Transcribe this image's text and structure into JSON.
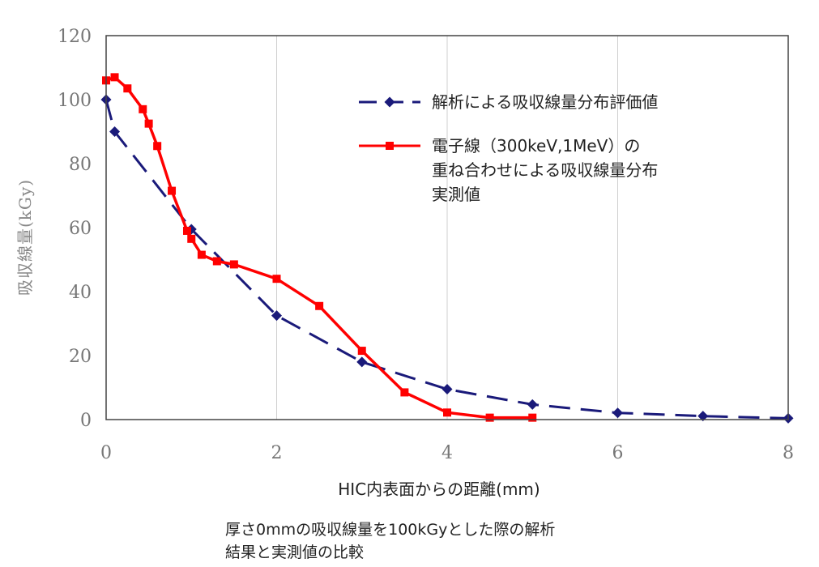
{
  "chart_data": {
    "type": "line",
    "title": "",
    "xlabel": "HIC内表面からの距離(mm)",
    "ylabel": "吸収線量(kGy)",
    "xlim": [
      0,
      8
    ],
    "ylim": [
      0,
      120
    ],
    "xticks": [
      0,
      2,
      4,
      6,
      8
    ],
    "yticks": [
      0,
      20,
      40,
      60,
      80,
      100,
      120
    ],
    "grid": "vertical",
    "legend_position": "top-right",
    "series": [
      {
        "name": "解析による吸収線量分布評価値",
        "legend_lines": [
          "解析による吸収線量分布評価値"
        ],
        "color": "#1a1a7a",
        "line_style": "dashed",
        "marker": "diamond",
        "x": [
          0,
          0.1,
          1.0,
          2.0,
          3.0,
          4.0,
          5.0,
          6.0,
          7.0,
          8.0
        ],
        "y": [
          100,
          90,
          59.5,
          32.5,
          18,
          9.5,
          4.7,
          2.1,
          1.1,
          0.4
        ]
      },
      {
        "name": "電子線（300keV,1MeV）の重ね合わせによる吸収線量分布実測値",
        "legend_lines": [
          "電子線（300keV,1MeV）の",
          "重ね合わせによる吸収線量分布",
          "実測値"
        ],
        "color": "#ff0000",
        "line_style": "solid",
        "marker": "square",
        "x": [
          0,
          0.1,
          0.25,
          0.43,
          0.5,
          0.6,
          0.77,
          0.95,
          1.0,
          1.12,
          1.3,
          1.5,
          2.0,
          2.5,
          3.0,
          3.5,
          4.0,
          4.5,
          5.0
        ],
        "y": [
          106,
          107,
          103.5,
          97,
          92.5,
          85.5,
          71.5,
          59,
          56.5,
          51.5,
          49.5,
          48.5,
          44,
          35.5,
          21.5,
          8.5,
          2.2,
          0.6,
          0.6
        ]
      }
    ]
  },
  "caption": {
    "line1": "厚さ0mmの吸収線量を100kGyとした際の解析",
    "line2": "結果と実測値の比較"
  }
}
